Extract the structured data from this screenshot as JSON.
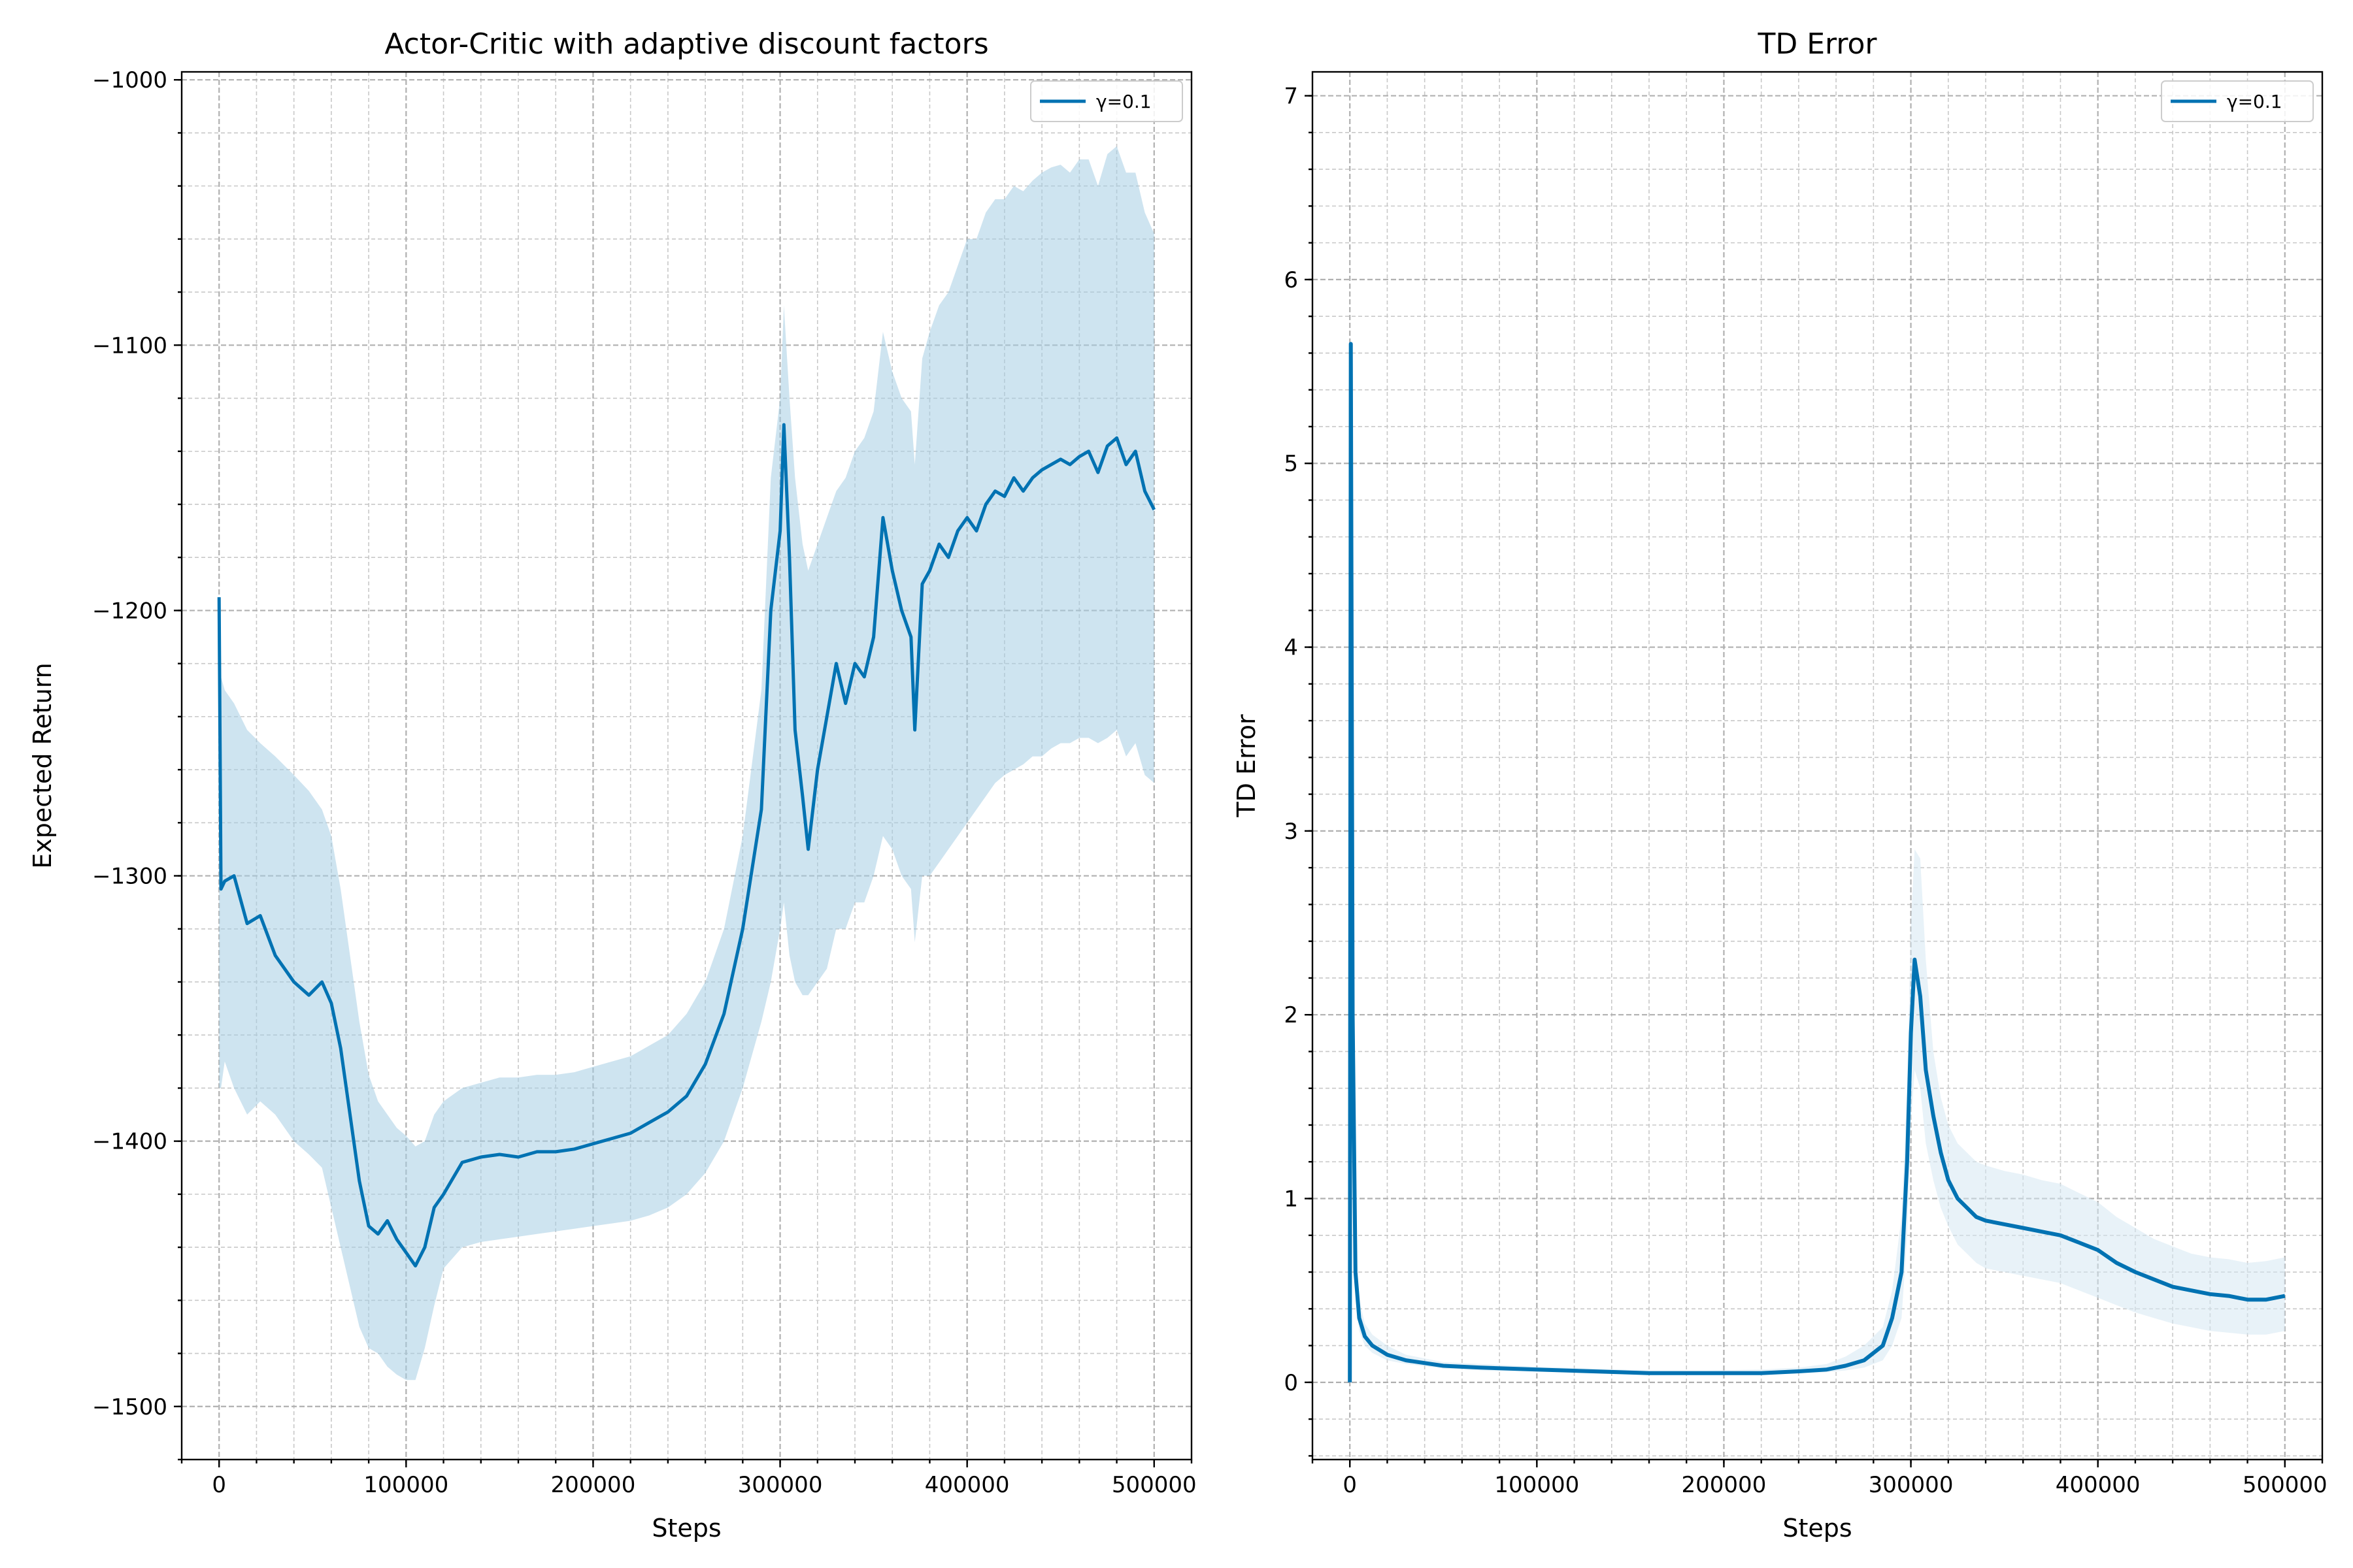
{
  "chart_data": [
    {
      "type": "line",
      "title": "Actor-Critic with adaptive discount factors",
      "xlabel": "Steps",
      "ylabel": "Expected Return",
      "xlim": [
        -20000,
        520000
      ],
      "ylim": [
        -1520,
        -997
      ],
      "xticks": [
        0,
        100000,
        200000,
        300000,
        400000,
        500000
      ],
      "yticks": [
        -1500,
        -1400,
        -1300,
        -1200,
        -1100,
        -1000
      ],
      "ytick_labels": [
        "−1500",
        "−1400",
        "−1300",
        "−1200",
        "−1100",
        "−1000"
      ],
      "grid": true,
      "legend_position": "top-right",
      "series": [
        {
          "name": "γ=0.1",
          "color": "#0072b2",
          "band_color": "#a6cde4",
          "x": [
            0,
            1000,
            3000,
            8000,
            15000,
            22000,
            30000,
            40000,
            48000,
            55000,
            60000,
            65000,
            70000,
            75000,
            80000,
            85000,
            90000,
            95000,
            100000,
            105000,
            110000,
            115000,
            120000,
            130000,
            140000,
            150000,
            160000,
            170000,
            180000,
            190000,
            200000,
            210000,
            220000,
            230000,
            240000,
            250000,
            260000,
            270000,
            280000,
            290000,
            295000,
            300000,
            302000,
            305000,
            308000,
            312000,
            315000,
            320000,
            325000,
            330000,
            335000,
            340000,
            345000,
            350000,
            355000,
            360000,
            365000,
            370000,
            372000,
            376000,
            380000,
            385000,
            390000,
            395000,
            400000,
            405000,
            410000,
            415000,
            420000,
            425000,
            430000,
            435000,
            440000,
            445000,
            450000,
            455000,
            460000,
            465000,
            470000,
            475000,
            480000,
            485000,
            490000,
            495000,
            500000
          ],
          "y": [
            -1195,
            -1305,
            -1302,
            -1300,
            -1318,
            -1315,
            -1330,
            -1340,
            -1345,
            -1340,
            -1348,
            -1365,
            -1390,
            -1415,
            -1432,
            -1435,
            -1430,
            -1437,
            -1442,
            -1447,
            -1440,
            -1425,
            -1420,
            -1408,
            -1406,
            -1405,
            -1406,
            -1404,
            -1404,
            -1403,
            -1401,
            -1399,
            -1397,
            -1393,
            -1389,
            -1383,
            -1371,
            -1352,
            -1320,
            -1275,
            -1200,
            -1170,
            -1130,
            -1180,
            -1245,
            -1270,
            -1290,
            -1260,
            -1240,
            -1220,
            -1235,
            -1220,
            -1225,
            -1210,
            -1165,
            -1185,
            -1200,
            -1210,
            -1245,
            -1190,
            -1185,
            -1175,
            -1180,
            -1170,
            -1165,
            -1170,
            -1160,
            -1155,
            -1157,
            -1150,
            -1155,
            -1150,
            -1147,
            -1145,
            -1143,
            -1145,
            -1142,
            -1140,
            -1148,
            -1138,
            -1135,
            -1145,
            -1140,
            -1155,
            -1162
          ],
          "y_lower": [
            -1380,
            -1380,
            -1370,
            -1380,
            -1390,
            -1385,
            -1390,
            -1400,
            -1405,
            -1410,
            -1425,
            -1440,
            -1455,
            -1470,
            -1478,
            -1480,
            -1485,
            -1488,
            -1490,
            -1490,
            -1478,
            -1462,
            -1448,
            -1440,
            -1438,
            -1437,
            -1436,
            -1435,
            -1434,
            -1433,
            -1432,
            -1431,
            -1430,
            -1428,
            -1425,
            -1420,
            -1412,
            -1400,
            -1380,
            -1355,
            -1340,
            -1320,
            -1310,
            -1330,
            -1340,
            -1345,
            -1345,
            -1340,
            -1335,
            -1320,
            -1320,
            -1310,
            -1310,
            -1300,
            -1285,
            -1290,
            -1300,
            -1305,
            -1325,
            -1300,
            -1300,
            -1295,
            -1290,
            -1285,
            -1280,
            -1275,
            -1270,
            -1265,
            -1262,
            -1260,
            -1258,
            -1255,
            -1255,
            -1252,
            -1250,
            -1250,
            -1248,
            -1248,
            -1250,
            -1248,
            -1245,
            -1255,
            -1250,
            -1262,
            -1265
          ],
          "y_upper": [
            -1195,
            -1225,
            -1230,
            -1235,
            -1245,
            -1250,
            -1255,
            -1262,
            -1268,
            -1275,
            -1285,
            -1305,
            -1330,
            -1355,
            -1375,
            -1385,
            -1390,
            -1395,
            -1398,
            -1402,
            -1400,
            -1390,
            -1385,
            -1380,
            -1378,
            -1376,
            -1376,
            -1375,
            -1375,
            -1374,
            -1372,
            -1370,
            -1368,
            -1364,
            -1360,
            -1352,
            -1340,
            -1320,
            -1285,
            -1230,
            -1150,
            -1120,
            -1085,
            -1120,
            -1150,
            -1175,
            -1185,
            -1175,
            -1165,
            -1155,
            -1150,
            -1140,
            -1135,
            -1125,
            -1095,
            -1110,
            -1120,
            -1125,
            -1145,
            -1105,
            -1095,
            -1085,
            -1080,
            -1070,
            -1060,
            -1060,
            -1050,
            -1045,
            -1045,
            -1040,
            -1042,
            -1038,
            -1035,
            -1033,
            -1032,
            -1035,
            -1030,
            -1030,
            -1040,
            -1028,
            -1025,
            -1035,
            -1035,
            -1050,
            -1058
          ]
        }
      ]
    },
    {
      "type": "line",
      "title": "TD Error",
      "xlabel": "Steps",
      "ylabel": "TD Error",
      "xlim": [
        -20000,
        520000
      ],
      "ylim": [
        -0.42,
        7.13
      ],
      "xticks": [
        0,
        100000,
        200000,
        300000,
        400000,
        500000
      ],
      "yticks": [
        0,
        1,
        2,
        3,
        4,
        5,
        6,
        7
      ],
      "ytick_labels": [
        "0",
        "1",
        "2",
        "3",
        "4",
        "5",
        "6",
        "7"
      ],
      "grid": true,
      "legend_position": "top-right",
      "series": [
        {
          "name": "γ=0.1",
          "color": "#0072b2",
          "band_color": "#d6e8f3",
          "x": [
            0,
            500,
            1500,
            3000,
            5000,
            8000,
            12000,
            20000,
            30000,
            50000,
            70000,
            100000,
            130000,
            160000,
            190000,
            220000,
            240000,
            255000,
            265000,
            275000,
            285000,
            290000,
            295000,
            298000,
            300000,
            302000,
            305000,
            308000,
            312000,
            316000,
            320000,
            325000,
            330000,
            335000,
            340000,
            350000,
            360000,
            370000,
            380000,
            390000,
            400000,
            410000,
            420000,
            430000,
            440000,
            450000,
            460000,
            470000,
            480000,
            490000,
            500000
          ],
          "y": [
            0,
            5.65,
            2.0,
            0.6,
            0.35,
            0.25,
            0.2,
            0.15,
            0.12,
            0.09,
            0.08,
            0.07,
            0.06,
            0.05,
            0.05,
            0.05,
            0.06,
            0.07,
            0.09,
            0.12,
            0.2,
            0.35,
            0.6,
            1.2,
            1.9,
            2.3,
            2.1,
            1.7,
            1.45,
            1.25,
            1.1,
            1.0,
            0.95,
            0.9,
            0.88,
            0.86,
            0.84,
            0.82,
            0.8,
            0.76,
            0.72,
            0.65,
            0.6,
            0.56,
            0.52,
            0.5,
            0.48,
            0.47,
            0.45,
            0.45,
            0.47
          ],
          "y_lower": [
            0,
            5.65,
            1.5,
            0.45,
            0.28,
            0.2,
            0.16,
            0.12,
            0.1,
            0.075,
            0.065,
            0.06,
            0.05,
            0.045,
            0.045,
            0.045,
            0.05,
            0.055,
            0.065,
            0.08,
            0.12,
            0.2,
            0.35,
            0.8,
            1.4,
            1.7,
            1.6,
            1.3,
            1.1,
            0.95,
            0.85,
            0.75,
            0.7,
            0.65,
            0.62,
            0.6,
            0.58,
            0.56,
            0.54,
            0.5,
            0.46,
            0.42,
            0.38,
            0.35,
            0.32,
            0.3,
            0.28,
            0.27,
            0.26,
            0.26,
            0.28
          ],
          "y_upper": [
            0,
            5.65,
            2.6,
            0.8,
            0.45,
            0.32,
            0.26,
            0.2,
            0.15,
            0.11,
            0.1,
            0.085,
            0.075,
            0.065,
            0.065,
            0.07,
            0.08,
            0.1,
            0.14,
            0.2,
            0.3,
            0.5,
            0.9,
            1.6,
            2.5,
            2.9,
            2.85,
            2.3,
            1.8,
            1.55,
            1.4,
            1.3,
            1.25,
            1.2,
            1.18,
            1.15,
            1.13,
            1.1,
            1.08,
            1.03,
            0.98,
            0.9,
            0.84,
            0.78,
            0.74,
            0.7,
            0.68,
            0.67,
            0.65,
            0.66,
            0.68
          ]
        }
      ]
    }
  ]
}
